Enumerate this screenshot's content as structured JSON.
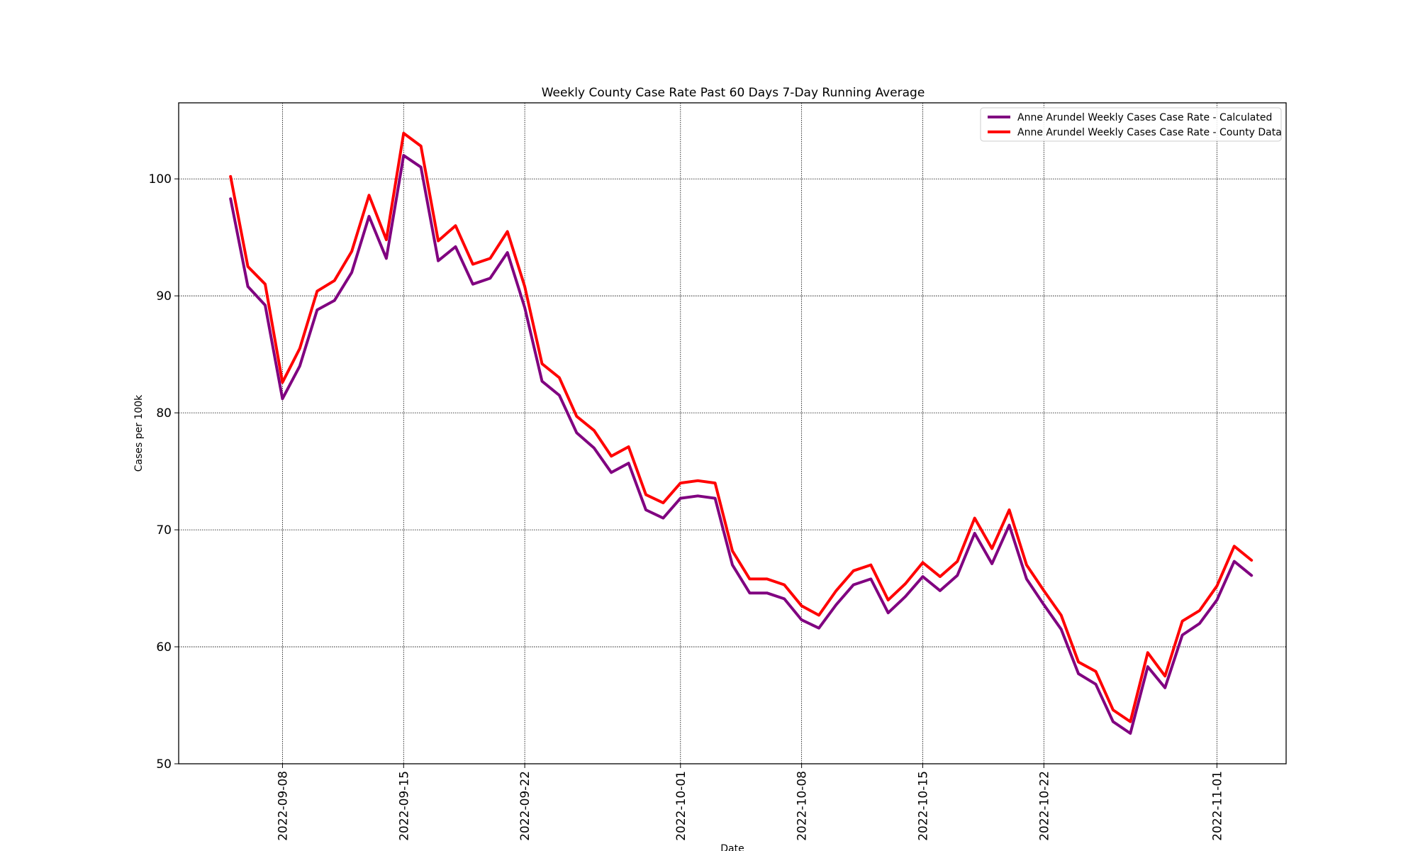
{
  "chart_data": {
    "type": "line",
    "title": "Weekly County Case Rate  Past 60 Days 7-Day Running Average",
    "xlabel": "Date",
    "ylabel": "Cases per 100k",
    "x_start": "2022-09-05",
    "x_range": [
      "2022-09-02",
      "2022-11-05"
    ],
    "ylim": [
      50,
      106.5
    ],
    "y_ticks": [
      50,
      60,
      70,
      80,
      90,
      100
    ],
    "x_ticks": [
      "2022-09-08",
      "2022-09-15",
      "2022-09-22",
      "2022-10-01",
      "2022-10-08",
      "2022-10-15",
      "2022-10-22",
      "2022-11-01"
    ],
    "grid": true,
    "legend_position": "top-right",
    "series": [
      {
        "name": "Anne Arundel Weekly Cases Case Rate - Calculated",
        "color": "#800080",
        "values": [
          98.3,
          90.8,
          89.2,
          81.2,
          84.0,
          88.8,
          89.6,
          92.0,
          96.8,
          93.2,
          102.0,
          101.0,
          93.0,
          94.2,
          91.0,
          91.5,
          93.7,
          89.0,
          82.7,
          81.5,
          78.3,
          77.0,
          74.9,
          75.7,
          71.7,
          71.0,
          72.7,
          72.9,
          72.7,
          67.0,
          64.6,
          64.6,
          64.1,
          62.3,
          61.6,
          63.6,
          65.3,
          65.8,
          62.9,
          64.3,
          66.0,
          64.8,
          66.1,
          69.7,
          67.1,
          70.4,
          65.8,
          63.6,
          61.5,
          57.7,
          56.8,
          53.6,
          52.6,
          58.3,
          56.5,
          61.0,
          62.0,
          64.0,
          67.3,
          66.1
        ]
      },
      {
        "name": "Anne Arundel Weekly Cases Case Rate - County Data",
        "color": "#ff0000",
        "values": [
          100.2,
          92.5,
          91.0,
          82.6,
          85.5,
          90.4,
          91.3,
          93.8,
          98.6,
          94.8,
          103.9,
          102.8,
          94.7,
          96.0,
          92.7,
          93.2,
          95.5,
          90.8,
          84.2,
          83.0,
          79.7,
          78.5,
          76.3,
          77.1,
          73.0,
          72.3,
          74.0,
          74.2,
          74.0,
          68.2,
          65.8,
          65.8,
          65.3,
          63.5,
          62.7,
          64.8,
          66.5,
          67.0,
          64.0,
          65.4,
          67.2,
          66.0,
          67.3,
          71.0,
          68.4,
          71.7,
          67.0,
          64.8,
          62.7,
          58.7,
          57.9,
          54.6,
          53.6,
          59.5,
          57.5,
          62.2,
          63.1,
          65.2,
          68.6,
          67.4
        ]
      }
    ]
  }
}
